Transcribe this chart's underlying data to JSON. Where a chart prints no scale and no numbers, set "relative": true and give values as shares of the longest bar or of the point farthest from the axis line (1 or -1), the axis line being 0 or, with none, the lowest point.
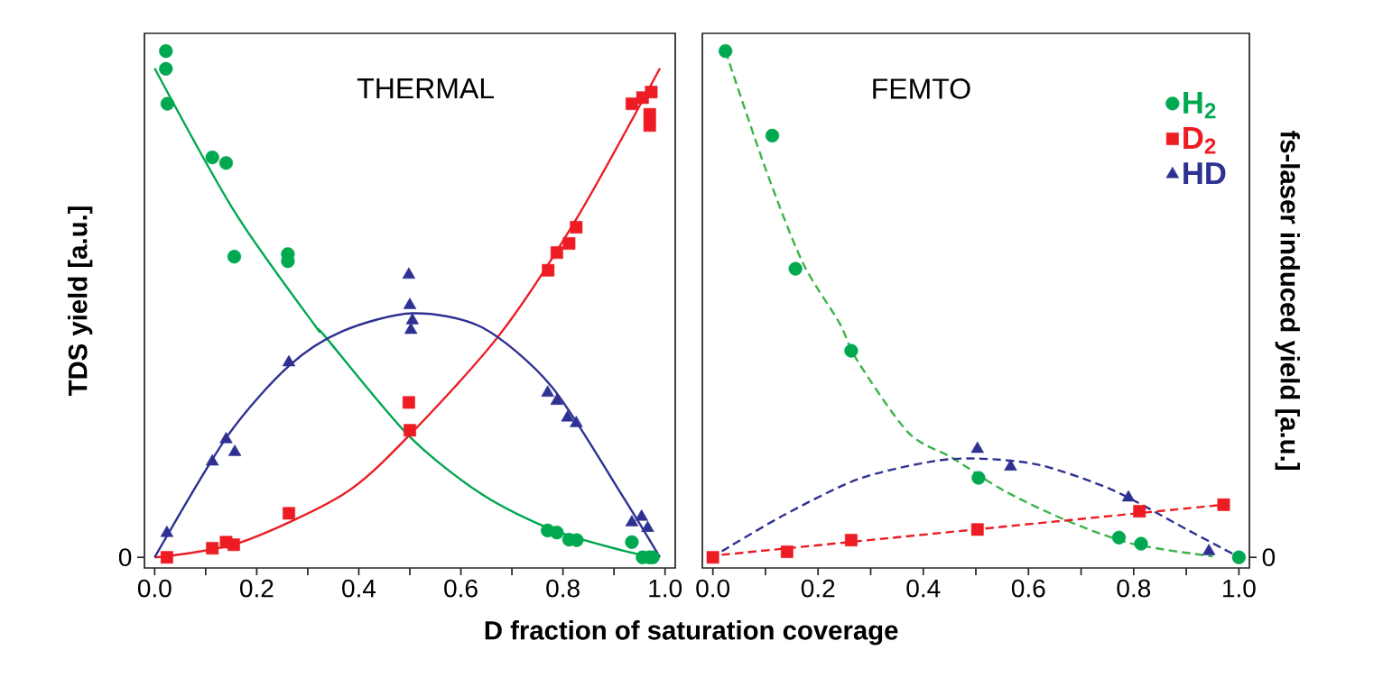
{
  "chart_data": [
    {
      "type": "scatter",
      "title": "THERMAL",
      "xlabel": "D fraction of saturation coverage",
      "ylabel": "TDS yield [a.u.]",
      "relative": true,
      "xlim": [
        -0.02,
        1.02
      ],
      "xticks": [
        {
          "value": 0,
          "label": "0.0"
        },
        {
          "value": 0.1,
          "label": null
        },
        {
          "value": 0.2,
          "label": "0.2"
        },
        {
          "value": 0.3,
          "label": null
        },
        {
          "value": 0.4,
          "label": "0.4"
        },
        {
          "value": 0.5,
          "label": null
        },
        {
          "value": 0.6,
          "label": "0.6"
        },
        {
          "value": 0.7,
          "label": null
        },
        {
          "value": 0.8,
          "label": "0.8"
        },
        {
          "value": 0.9,
          "label": null
        },
        {
          "value": 1.0,
          "label": "1.0"
        }
      ],
      "annotations": [
        "0"
      ],
      "series": [
        {
          "marker": "circle",
          "color": "#00a850",
          "x": [
            0.022,
            0.022,
            0.025,
            0.113,
            0.14,
            0.156,
            0.261,
            0.261,
            0.77,
            0.788,
            0.812,
            0.827,
            0.935,
            0.956,
            0.969,
            0.976
          ],
          "values": [
            1.0,
            0.965,
            0.896,
            0.79,
            0.779,
            0.594,
            0.599,
            0.585,
            0.053,
            0.049,
            0.035,
            0.034,
            0.03,
            0,
            0,
            0
          ]
        },
        {
          "marker": "square",
          "color": "#ed1c24",
          "x": [
            0.024,
            0.113,
            0.14,
            0.155,
            0.263,
            0.498,
            0.5,
            0.771,
            0.788,
            0.812,
            0.826,
            0.935,
            0.956,
            0.973,
            0.97,
            0.97
          ],
          "values": [
            0,
            0.018,
            0.03,
            0.025,
            0.087,
            0.306,
            0.251,
            0.567,
            0.602,
            0.62,
            0.652,
            0.896,
            0.908,
            0.919,
            0.853,
            0.875
          ]
        },
        {
          "marker": "triangle",
          "color": "#2e3192",
          "x": [
            0.024,
            0.113,
            0.14,
            0.157,
            0.263,
            0.498,
            0.5,
            0.505,
            0.502,
            0.77,
            0.788,
            0.809,
            0.826,
            0.935,
            0.954,
            0.966
          ],
          "values": [
            0.048,
            0.189,
            0.233,
            0.208,
            0.385,
            0.558,
            0.498,
            0.468,
            0.449,
            0.325,
            0.309,
            0.276,
            0.265,
            0.069,
            0.08,
            0.058
          ]
        },
        {
          "type": "line",
          "marker": "none",
          "line_style": "solid",
          "color": "#00a850",
          "x": [
            0.0,
            0.157,
            0.314,
            0.331,
            0.498,
            0.642,
            0.778,
            0.915,
            0.983
          ],
          "values": [
            0.966,
            0.682,
            0.458,
            0.44,
            0.24,
            0.124,
            0.055,
            0.014,
            0
          ]
        },
        {
          "type": "line",
          "marker": "none",
          "line_style": "solid",
          "color": "#ed1c24",
          "x": [
            0.0,
            0.164,
            0.369,
            0.498,
            0.676,
            0.826,
            0.99
          ],
          "values": [
            0,
            0.028,
            0.124,
            0.24,
            0.44,
            0.668,
            0.966
          ]
        },
        {
          "type": "line",
          "marker": "none",
          "line_style": "solid",
          "color": "#2e3192",
          "x": [
            0.0,
            0.143,
            0.263,
            0.369,
            0.505,
            0.642,
            0.778,
            0.915,
            0.99
          ],
          "values": [
            0,
            0.24,
            0.378,
            0.447,
            0.482,
            0.454,
            0.337,
            0.124,
            0
          ]
        }
      ]
    },
    {
      "type": "scatter",
      "title": "FEMTO",
      "ylabel": "fs-laser induced yield [a.u.]",
      "relative": true,
      "legend": "top right",
      "xlim": [
        -0.02,
        1.02
      ],
      "xticks": [
        {
          "value": 0,
          "label": "0.0"
        },
        {
          "value": 0.1,
          "label": null
        },
        {
          "value": 0.2,
          "label": "0.2"
        },
        {
          "value": 0.3,
          "label": null
        },
        {
          "value": 0.4,
          "label": "0.4"
        },
        {
          "value": 0.5,
          "label": null
        },
        {
          "value": 0.6,
          "label": "0.6"
        },
        {
          "value": 0.7,
          "label": null
        },
        {
          "value": 0.8,
          "label": "0.8"
        },
        {
          "value": 0.9,
          "label": null
        },
        {
          "value": 1.0,
          "label": "1.0"
        }
      ],
      "annotations": [
        "0"
      ],
      "series": [
        {
          "name": "H$_{2}$",
          "marker": "circle",
          "color": "#00a850",
          "x": [
            0.024,
            0.113,
            0.157,
            0.263,
            0.505,
            0.772,
            0.814,
            1.0
          ],
          "values": [
            1.0,
            0.833,
            0.57,
            0.408,
            0.157,
            0.039,
            0.027,
            0
          ]
        },
        {
          "name": "D$_{2}$",
          "marker": "square",
          "color": "#ed1c24",
          "x": [
            0.0,
            0.141,
            0.263,
            0.503,
            0.811,
            0.971
          ],
          "values": [
            0,
            0.011,
            0.034,
            0.055,
            0.091,
            0.104
          ]
        },
        {
          "name": "HD",
          "marker": "triangle",
          "color": "#2e3192",
          "x": [
            0.503,
            0.566,
            0.79,
            0.943
          ],
          "values": [
            0.214,
            0.179,
            0.118,
            0.012
          ]
        },
        {
          "type": "line",
          "marker": "none",
          "line_style": "dashed",
          "color": "#3cb44a",
          "x": [
            0.024,
            0.1,
            0.17,
            0.24,
            0.275,
            0.372,
            0.456,
            0.553,
            0.672,
            0.797,
            0.95
          ],
          "values": [
            1.0,
            0.768,
            0.584,
            0.464,
            0.388,
            0.246,
            0.196,
            0.132,
            0.073,
            0.027,
            0.002
          ]
        },
        {
          "type": "line",
          "marker": "none",
          "line_style": "dashed",
          "color": "#ed1c24",
          "x": [
            0.017,
            0.971
          ],
          "values": [
            0.005,
            0.104
          ]
        },
        {
          "type": "line",
          "marker": "none",
          "line_style": "dashed",
          "color": "#2e3192",
          "x": [
            0.017,
            0.136,
            0.275,
            0.414,
            0.505,
            0.623,
            0.762,
            0.901,
            0.992
          ],
          "values": [
            0.012,
            0.084,
            0.154,
            0.189,
            0.195,
            0.182,
            0.132,
            0.055,
            0.005
          ]
        }
      ]
    }
  ]
}
